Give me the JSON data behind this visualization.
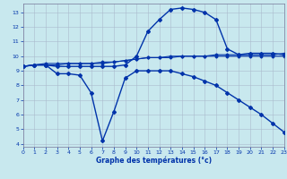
{
  "xlabel": "Graphe des températures (°c)",
  "background_color": "#c8e8ee",
  "grid_color": "#aabbcc",
  "line_color": "#0033aa",
  "xlim": [
    0,
    23
  ],
  "ylim": [
    3.8,
    13.6
  ],
  "xticks": [
    0,
    1,
    2,
    3,
    4,
    5,
    6,
    7,
    8,
    9,
    10,
    11,
    12,
    13,
    14,
    15,
    16,
    17,
    18,
    19,
    20,
    21,
    22,
    23
  ],
  "yticks": [
    4,
    5,
    6,
    7,
    8,
    9,
    10,
    11,
    12,
    13
  ],
  "line_arc": {
    "x": [
      0,
      1,
      2,
      3,
      4,
      5,
      6,
      7,
      8,
      9,
      10,
      11,
      12,
      13,
      14,
      15,
      16,
      17,
      18,
      19,
      20,
      21,
      22,
      23
    ],
    "y": [
      9.3,
      9.4,
      9.4,
      9.3,
      9.3,
      9.3,
      9.3,
      9.3,
      9.3,
      9.4,
      10.0,
      11.7,
      12.5,
      13.2,
      13.3,
      13.2,
      13.0,
      12.5,
      10.5,
      10.1,
      10.2,
      10.2,
      10.2,
      10.1
    ]
  },
  "line_flat_upper": {
    "x": [
      0,
      1,
      2,
      3,
      4,
      5,
      6,
      7,
      8,
      9,
      10,
      11,
      12,
      13,
      14,
      15,
      16,
      17,
      18,
      19,
      20,
      21,
      22,
      23
    ],
    "y": [
      9.3,
      9.4,
      9.5,
      9.5,
      9.5,
      9.5,
      9.5,
      9.6,
      9.6,
      9.7,
      9.8,
      9.9,
      9.9,
      9.9,
      10.0,
      10.0,
      10.0,
      10.1,
      10.1,
      10.1,
      10.1,
      10.1,
      10.1,
      10.2
    ]
  },
  "line_flat_lower": {
    "x": [
      0,
      1,
      2,
      3,
      4,
      5,
      6,
      7,
      8,
      9,
      10,
      11,
      12,
      13,
      14,
      15,
      16,
      17,
      18,
      19,
      20,
      21,
      22,
      23
    ],
    "y": [
      9.3,
      9.4,
      9.4,
      9.4,
      9.5,
      9.5,
      9.5,
      9.5,
      9.6,
      9.7,
      9.8,
      9.9,
      9.9,
      10.0,
      10.0,
      10.0,
      10.0,
      10.0,
      10.0,
      10.0,
      10.0,
      10.0,
      10.0,
      10.0
    ]
  },
  "line_zigzag": {
    "x": [
      0,
      1,
      2,
      3,
      4,
      5,
      6,
      7,
      8,
      9,
      10,
      11,
      12,
      13,
      14,
      15,
      16,
      17,
      18,
      19,
      20,
      21,
      22,
      23
    ],
    "y": [
      9.3,
      9.4,
      9.4,
      8.8,
      8.8,
      8.7,
      7.5,
      4.2,
      6.2,
      8.5,
      9.0,
      9.0,
      9.0,
      9.0,
      8.8,
      8.6,
      8.3,
      8.0,
      7.5,
      7.0,
      6.5,
      6.0,
      5.4,
      4.8
    ]
  }
}
